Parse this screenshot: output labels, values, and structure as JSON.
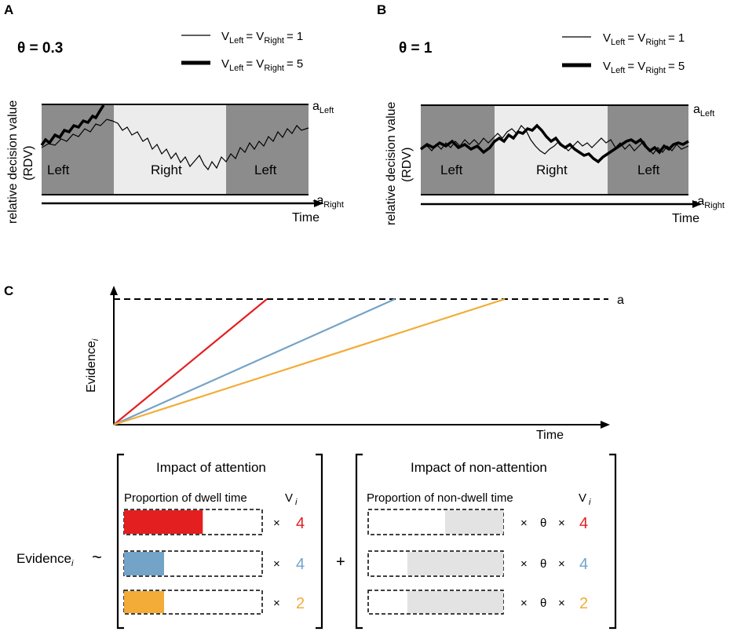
{
  "colors": {
    "attended_dark": "#8c8c8c",
    "unattended_light": "#ececec",
    "red": "#e41f1f",
    "blue": "#74a3c8",
    "orange": "#f2ac37",
    "nonattn_fill": "#e3e3e3"
  },
  "panel_a": {
    "letter": "A",
    "theta": "θ = 0.3",
    "ylabel_line1": "relative decision value",
    "ylabel_line2": "(RDV)",
    "top_label": "a",
    "top_sub": "Left",
    "bottom_label": "-a",
    "bottom_sub": "Right",
    "xlabel": "Time",
    "regions": [
      "Left",
      "Right",
      "Left"
    ]
  },
  "panel_b": {
    "letter": "B",
    "theta": "θ = 1",
    "ylabel_line1": "relative decision value",
    "ylabel_line2": "(RDV)",
    "top_label": "a",
    "top_sub": "Left",
    "bottom_label": "-a",
    "bottom_sub": "Right",
    "xlabel": "Time",
    "regions": [
      "Left",
      "Right",
      "Left"
    ]
  },
  "legend": {
    "thin": {
      "v": "V",
      "sub1": "Left",
      "eq": "= V",
      "sub2": "Right",
      "val": "= 1"
    },
    "thick": {
      "v": "V",
      "sub1": "Left",
      "eq": "= V",
      "sub2": "Right",
      "val": "= 5"
    }
  },
  "panel_c": {
    "letter": "C",
    "ylabel": "Evidence",
    "ylabel_sub": "i",
    "xlabel": "Time",
    "threshold_label": "a",
    "attention_title": "Impact of attention",
    "nonattention_title": "Impact of non-attention",
    "dwell_label": "Proportion of dwell time",
    "nondwell_label": "Proportion of non-dwell time",
    "v_label": "V",
    "v_sub": "i",
    "evidence_label": "Evidence",
    "evidence_sub": "i",
    "tilde": "~",
    "plus": "+",
    "times": "×",
    "theta": "θ",
    "rows": [
      {
        "value": "4",
        "color": "#e41f1f",
        "dwell_fraction": 0.57,
        "nondwell_fraction": 0.43
      },
      {
        "value": "4",
        "color": "#74a3c8",
        "dwell_fraction": 0.29,
        "nondwell_fraction": 0.71
      },
      {
        "value": "2",
        "color": "#f2ac37",
        "dwell_fraction": 0.29,
        "nondwell_fraction": 0.71
      }
    ]
  }
}
